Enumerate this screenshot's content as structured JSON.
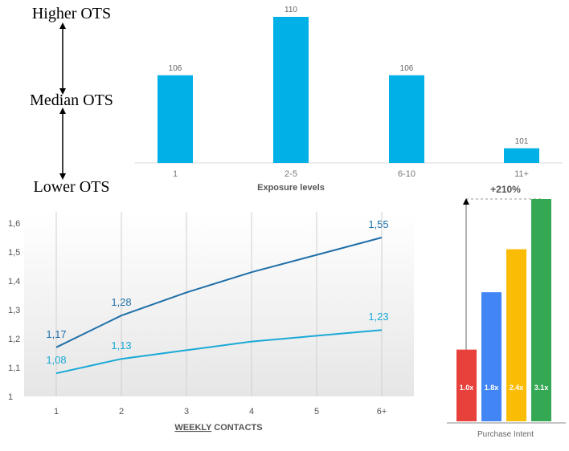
{
  "chart_data": [
    {
      "type": "bar",
      "xlabel": "Exposure levels",
      "categories": [
        "1",
        "2-5",
        "6-10",
        "11+"
      ],
      "values": [
        106,
        110,
        106,
        101
      ],
      "data_labels": [
        "106",
        "110",
        "106",
        "101"
      ],
      "ylim": [
        100,
        110
      ],
      "scale_labels": {
        "top": "Higher OTS",
        "middle": "Median OTS",
        "bottom": "Lower OTS"
      },
      "color": "#00b0e6",
      "grid": false
    },
    {
      "type": "line",
      "xlabel_underlined": "WEEKLY",
      "xlabel_rest": " CONTACTS",
      "x": [
        "1",
        "2",
        "3",
        "4",
        "5",
        "6+"
      ],
      "y_ticks": [
        "1",
        "1,1",
        "1,2",
        "1,3",
        "1,4",
        "1,5",
        "1,6"
      ],
      "ylim": [
        1,
        1.6
      ],
      "grid": "vertical",
      "series": [
        {
          "values": [
            1.17,
            1.28,
            1.36,
            1.43,
            1.49,
            1.55
          ],
          "point_labels": [
            "1,17",
            "1,28",
            "",
            "",
            "",
            "1,55"
          ],
          "color": "#1f6fa8"
        },
        {
          "values": [
            1.08,
            1.13,
            1.16,
            1.19,
            1.21,
            1.23
          ],
          "point_labels": [
            "1,08",
            "1,13",
            "",
            "",
            "",
            "1,23"
          ],
          "color": "#19a9d6"
        }
      ]
    },
    {
      "type": "bar",
      "xlabel": "Purchase Intent",
      "annotation": "+210%",
      "categories": [
        "1.0x",
        "1.8x",
        "2.4x",
        "3.1x"
      ],
      "values": [
        1.0,
        1.8,
        2.4,
        3.1
      ],
      "colors": [
        "#e8403a",
        "#4285f4",
        "#fbbc05",
        "#34a853"
      ],
      "ylim": [
        0,
        3.1
      ]
    }
  ]
}
